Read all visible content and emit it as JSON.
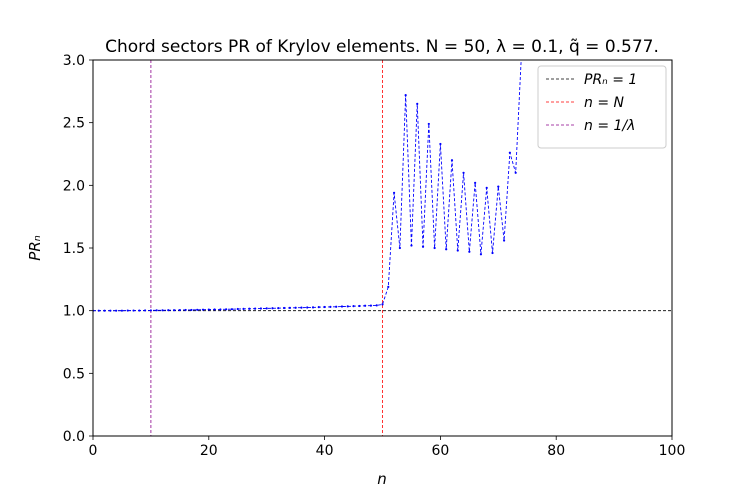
{
  "chart_data": {
    "type": "line",
    "title": "Chord sectors PR of Krylov elements. N = 50, λ = 0.1, q̃ = 0.577.",
    "xlabel": "n",
    "ylabel": "PRₙ",
    "xlim": [
      0,
      100
    ],
    "ylim": [
      0.0,
      3.0
    ],
    "xticks": [
      0,
      20,
      40,
      60,
      80,
      100
    ],
    "yticks": [
      0.0,
      0.5,
      1.0,
      1.5,
      2.0,
      2.5,
      3.0
    ],
    "xtick_labels": [
      "0",
      "20",
      "40",
      "60",
      "80",
      "100"
    ],
    "ytick_labels": [
      "0.0",
      "0.5",
      "1.0",
      "1.5",
      "2.0",
      "2.5",
      "3.0"
    ],
    "grid": false,
    "legend_position": "top-right",
    "series": [
      {
        "color": "#0000ff",
        "style": "dashed-with-dots",
        "x": [
          0,
          1,
          2,
          3,
          4,
          5,
          6,
          7,
          8,
          9,
          10,
          11,
          12,
          13,
          14,
          15,
          16,
          17,
          18,
          19,
          20,
          21,
          22,
          23,
          24,
          25,
          26,
          27,
          28,
          29,
          30,
          31,
          32,
          33,
          34,
          35,
          36,
          37,
          38,
          39,
          40,
          41,
          42,
          43,
          44,
          45,
          46,
          47,
          48,
          49,
          50,
          51,
          52,
          53,
          54,
          55,
          56,
          57,
          58,
          59,
          60,
          61,
          62,
          63,
          64,
          65,
          66,
          67,
          68,
          69,
          70,
          71,
          72,
          73,
          74
        ],
        "y": [
          1.0,
          1.0,
          1.0,
          1.0,
          1.0,
          1.0,
          1.001,
          1.001,
          1.001,
          1.002,
          1.002,
          1.003,
          1.003,
          1.004,
          1.004,
          1.005,
          1.006,
          1.006,
          1.007,
          1.008,
          1.009,
          1.01,
          1.01,
          1.011,
          1.012,
          1.013,
          1.014,
          1.015,
          1.016,
          1.017,
          1.018,
          1.019,
          1.02,
          1.021,
          1.022,
          1.023,
          1.024,
          1.025,
          1.026,
          1.028,
          1.029,
          1.03,
          1.031,
          1.033,
          1.034,
          1.036,
          1.037,
          1.039,
          1.04,
          1.042,
          1.05,
          1.19,
          1.94,
          1.5,
          2.72,
          1.52,
          2.65,
          1.51,
          2.49,
          1.5,
          2.33,
          1.49,
          2.2,
          1.48,
          2.1,
          1.47,
          2.02,
          1.45,
          1.98,
          1.46,
          1.99,
          1.56,
          2.26,
          2.1,
          3.05
        ]
      }
    ],
    "reference_lines": [
      {
        "orientation": "horizontal",
        "value": 1.0,
        "color": "#000000",
        "legend": "PRₙ = 1"
      },
      {
        "orientation": "vertical",
        "value": 50,
        "color": "#ff0000",
        "legend": "n = N"
      },
      {
        "orientation": "vertical",
        "value": 10,
        "color": "#8b008b",
        "legend": "n = 1/λ"
      }
    ]
  }
}
